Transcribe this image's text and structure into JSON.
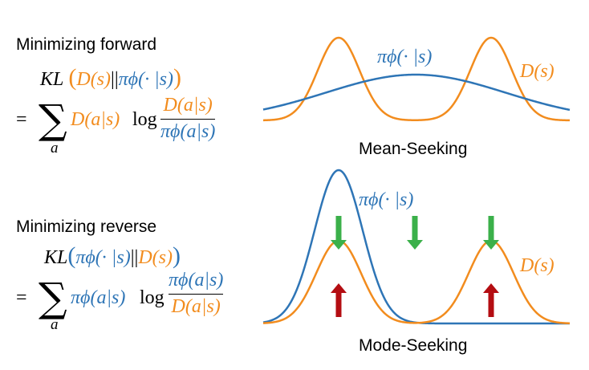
{
  "forward": {
    "heading": "Minimizing forward",
    "kl": "KL",
    "open": "(",
    "close": ")",
    "target": "D(s)",
    "sep": "||",
    "policy": "πϕ(· |s)",
    "equals": "=",
    "sum_symbol": "∑",
    "sum_index": "a",
    "weight": "D(a|s)",
    "log": "log",
    "numerator": "D(a|s)",
    "denominator": "πϕ(a|s)",
    "caption": "Mean-Seeking",
    "curve_label_policy": "πϕ(· |s)",
    "curve_label_target": "D(s)"
  },
  "reverse": {
    "heading": "Minimizing reverse",
    "kl": "KL",
    "open": "(",
    "close": ")",
    "policy": "πϕ(· |s)",
    "sep": "||",
    "target": "D(s)",
    "equals": "=",
    "sum_symbol": "∑",
    "sum_index": "a",
    "weight": "πϕ(a|s)",
    "log": "log",
    "numerator": "πϕ(a|s)",
    "denominator": "D(a|s)",
    "caption": "Mode-Seeking",
    "curve_label_policy": "πϕ(· |s)",
    "curve_label_target": "D(s)"
  },
  "colors": {
    "target": "#F28C1E",
    "policy": "#2E75B6",
    "down_arrow": "#3BB04A",
    "up_arrow": "#B40D12"
  }
}
